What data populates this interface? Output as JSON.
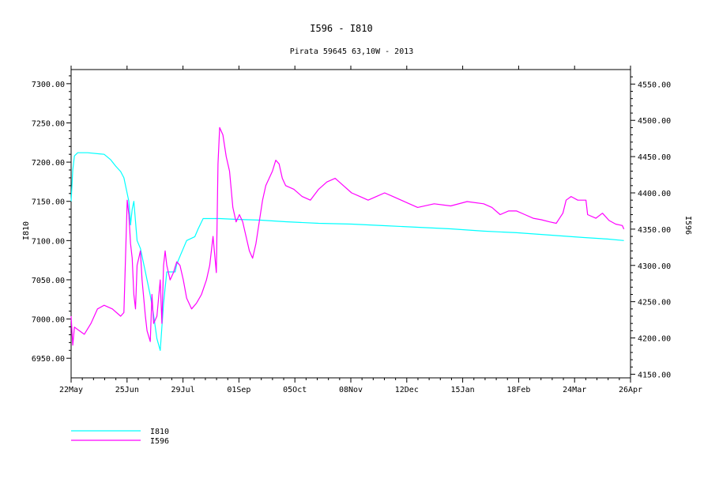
{
  "chart_data": {
    "type": "line",
    "title": "I596 - I810",
    "subtitle": "Pirata 59645 63,10W - 2013",
    "ylabel_left": "I810",
    "ylabel_right": "I596",
    "x_ticks": [
      "22May",
      "25Jun",
      "29Jul",
      "01Sep",
      "05Oct",
      "08Nov",
      "12Dec",
      "15Jan",
      "18Feb",
      "24Mar",
      "26Apr"
    ],
    "x_range_days": [
      0,
      339
    ],
    "y_left": {
      "range": [
        6925,
        7318
      ],
      "ticks": [
        6950,
        7000,
        7050,
        7100,
        7150,
        7200,
        7250,
        7300
      ],
      "tick_labels": [
        "6950.00",
        "7000.00",
        "7050.00",
        "7100.00",
        "7150.00",
        "7200.00",
        "7250.00",
        "7300.00"
      ]
    },
    "y_right": {
      "range": [
        4145,
        4570
      ],
      "ticks": [
        4150,
        4200,
        4250,
        4300,
        4350,
        4400,
        4450,
        4500,
        4550
      ],
      "tick_labels": [
        "4150.00",
        "4200.00",
        "4250.00",
        "4300.00",
        "4350.00",
        "4400.00",
        "4450.00",
        "4500.00",
        "4550.00"
      ]
    },
    "series": [
      {
        "name": "I810",
        "axis": "left",
        "color": "#00ffff",
        "points": [
          [
            0,
            7150
          ],
          [
            1,
            7190
          ],
          [
            2,
            7208
          ],
          [
            4,
            7212
          ],
          [
            10,
            7212
          ],
          [
            20,
            7210
          ],
          [
            24,
            7203
          ],
          [
            27,
            7195
          ],
          [
            30,
            7188
          ],
          [
            32,
            7180
          ],
          [
            33,
            7170
          ],
          [
            35,
            7150
          ],
          [
            36,
            7120
          ],
          [
            37,
            7140
          ],
          [
            38,
            7150
          ],
          [
            40,
            7100
          ],
          [
            42,
            7090
          ],
          [
            45,
            7060
          ],
          [
            48,
            7030
          ],
          [
            50,
            7005
          ],
          [
            52,
            6975
          ],
          [
            54,
            6960
          ],
          [
            55,
            6990
          ],
          [
            56,
            7020
          ],
          [
            58,
            7060
          ],
          [
            62,
            7060
          ],
          [
            63,
            7060
          ],
          [
            64,
            7070
          ],
          [
            66,
            7080
          ],
          [
            70,
            7100
          ],
          [
            75,
            7105
          ],
          [
            77,
            7115
          ],
          [
            80,
            7128
          ],
          [
            90,
            7128
          ],
          [
            100,
            7127
          ],
          [
            115,
            7126
          ],
          [
            130,
            7124
          ],
          [
            150,
            7122
          ],
          [
            170,
            7121
          ],
          [
            190,
            7119
          ],
          [
            210,
            7117
          ],
          [
            230,
            7115
          ],
          [
            250,
            7112
          ],
          [
            270,
            7110
          ],
          [
            290,
            7107
          ],
          [
            310,
            7104
          ],
          [
            325,
            7102
          ],
          [
            335,
            7100
          ]
        ]
      },
      {
        "name": "I596",
        "axis": "right",
        "color": "#ff00ff",
        "points": [
          [
            0,
            4230
          ],
          [
            1,
            4190
          ],
          [
            2,
            4215
          ],
          [
            5,
            4210
          ],
          [
            8,
            4205
          ],
          [
            12,
            4220
          ],
          [
            16,
            4240
          ],
          [
            20,
            4245
          ],
          [
            25,
            4240
          ],
          [
            30,
            4230
          ],
          [
            32,
            4235
          ],
          [
            34,
            4390
          ],
          [
            35,
            4370
          ],
          [
            36,
            4330
          ],
          [
            37,
            4310
          ],
          [
            38,
            4260
          ],
          [
            39,
            4240
          ],
          [
            40,
            4300
          ],
          [
            42,
            4320
          ],
          [
            43,
            4280
          ],
          [
            45,
            4230
          ],
          [
            46,
            4210
          ],
          [
            48,
            4195
          ],
          [
            49,
            4260
          ],
          [
            50,
            4220
          ],
          [
            52,
            4230
          ],
          [
            54,
            4280
          ],
          [
            55,
            4220
          ],
          [
            56,
            4300
          ],
          [
            57,
            4320
          ],
          [
            58,
            4300
          ],
          [
            60,
            4280
          ],
          [
            62,
            4290
          ],
          [
            64,
            4305
          ],
          [
            66,
            4300
          ],
          [
            68,
            4280
          ],
          [
            70,
            4255
          ],
          [
            73,
            4240
          ],
          [
            76,
            4248
          ],
          [
            79,
            4260
          ],
          [
            82,
            4280
          ],
          [
            84,
            4300
          ],
          [
            86,
            4340
          ],
          [
            88,
            4290
          ],
          [
            89,
            4440
          ],
          [
            90,
            4490
          ],
          [
            92,
            4480
          ],
          [
            94,
            4450
          ],
          [
            96,
            4430
          ],
          [
            98,
            4380
          ],
          [
            100,
            4360
          ],
          [
            102,
            4370
          ],
          [
            104,
            4360
          ],
          [
            106,
            4340
          ],
          [
            108,
            4320
          ],
          [
            110,
            4310
          ],
          [
            112,
            4330
          ],
          [
            114,
            4360
          ],
          [
            116,
            4390
          ],
          [
            118,
            4410
          ],
          [
            120,
            4420
          ],
          [
            122,
            4430
          ],
          [
            124,
            4445
          ],
          [
            126,
            4440
          ],
          [
            128,
            4420
          ],
          [
            130,
            4410
          ],
          [
            135,
            4405
          ],
          [
            140,
            4395
          ],
          [
            145,
            4390
          ],
          [
            150,
            4405
          ],
          [
            155,
            4415
          ],
          [
            160,
            4420
          ],
          [
            165,
            4410
          ],
          [
            170,
            4400
          ],
          [
            175,
            4395
          ],
          [
            180,
            4390
          ],
          [
            185,
            4395
          ],
          [
            190,
            4400
          ],
          [
            195,
            4395
          ],
          [
            200,
            4390
          ],
          [
            205,
            4385
          ],
          [
            210,
            4380
          ],
          [
            220,
            4385
          ],
          [
            230,
            4382
          ],
          [
            240,
            4388
          ],
          [
            250,
            4385
          ],
          [
            255,
            4380
          ],
          [
            260,
            4370
          ],
          [
            265,
            4375
          ],
          [
            270,
            4375
          ],
          [
            275,
            4370
          ],
          [
            280,
            4365
          ],
          [
            285,
            4363
          ],
          [
            290,
            4360
          ],
          [
            294,
            4358
          ],
          [
            296,
            4365
          ],
          [
            298,
            4372
          ],
          [
            300,
            4390
          ],
          [
            303,
            4395
          ],
          [
            307,
            4390
          ],
          [
            312,
            4390
          ],
          [
            313,
            4370
          ],
          [
            318,
            4365
          ],
          [
            322,
            4372
          ],
          [
            326,
            4362
          ],
          [
            330,
            4357
          ],
          [
            334,
            4355
          ],
          [
            335,
            4350
          ]
        ]
      }
    ],
    "legend": {
      "placement": "bottom-left",
      "entries": [
        "I810",
        "I596"
      ]
    }
  }
}
